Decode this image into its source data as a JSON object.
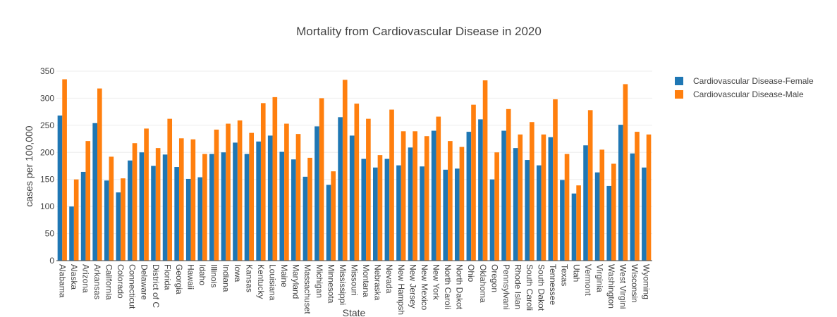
{
  "chart_data": {
    "type": "bar",
    "title": "Mortality from Cardiovascular Disease in 2020",
    "xlabel": "State",
    "ylabel": "cases per 100,000",
    "ylim": [
      0,
      350
    ],
    "yticks": [
      "0",
      "50",
      "100",
      "150",
      "200",
      "250",
      "300",
      "350"
    ],
    "grid": true,
    "legend_position": "top-right",
    "categories": [
      "Alabama",
      "Alaska",
      "Arizona",
      "Arkansas",
      "California",
      "Colorado",
      "Connecticut",
      "Delaware",
      "District of C",
      "Florida",
      "Georgia",
      "Hawaii",
      "Idaho",
      "Illinois",
      "Indiana",
      "Iowa",
      "Kansas",
      "Kentucky",
      "Louisiana",
      "Maine",
      "Maryland",
      "Massachuset",
      "Michigan",
      "Minnesota",
      "Mississippi",
      "Missouri",
      "Montana",
      "Nebraska",
      "Nevada",
      "New Hampsh",
      "New Jersey",
      "New Mexico",
      "New York",
      "North Caroli",
      "North Dakot",
      "Ohio",
      "Oklahoma",
      "Oregon",
      "Pennsylvani",
      "Rhode Islan",
      "South Caroli",
      "South Dakot",
      "Tennessee",
      "Texas",
      "Utah",
      "Vermont",
      "Virginia",
      "Washington",
      "West Virgini",
      "Wisconsin",
      "Wyoming"
    ],
    "series": [
      {
        "name": "Cardiovascular Disease-Female",
        "color": "#1f77b4",
        "values": [
          268,
          100,
          164,
          254,
          148,
          126,
          185,
          200,
          175,
          196,
          173,
          151,
          154,
          197,
          200,
          218,
          197,
          220,
          231,
          201,
          187,
          155,
          248,
          140,
          265,
          231,
          188,
          172,
          188,
          176,
          209,
          174,
          240,
          168,
          170,
          238,
          261,
          150,
          240,
          208,
          186,
          176,
          228,
          149,
          124,
          213,
          163,
          138,
          251,
          198,
          172
        ]
      },
      {
        "name": "Cardiovascular Disease-Male",
        "color": "#ff7f0e",
        "values": [
          335,
          150,
          221,
          318,
          192,
          152,
          217,
          244,
          208,
          262,
          226,
          224,
          197,
          242,
          253,
          259,
          236,
          291,
          302,
          253,
          234,
          190,
          300,
          165,
          334,
          290,
          262,
          195,
          279,
          239,
          239,
          230,
          266,
          221,
          210,
          288,
          333,
          200,
          280,
          233,
          256,
          233,
          298,
          197,
          139,
          278,
          205,
          179,
          326,
          238,
          233
        ]
      }
    ]
  }
}
